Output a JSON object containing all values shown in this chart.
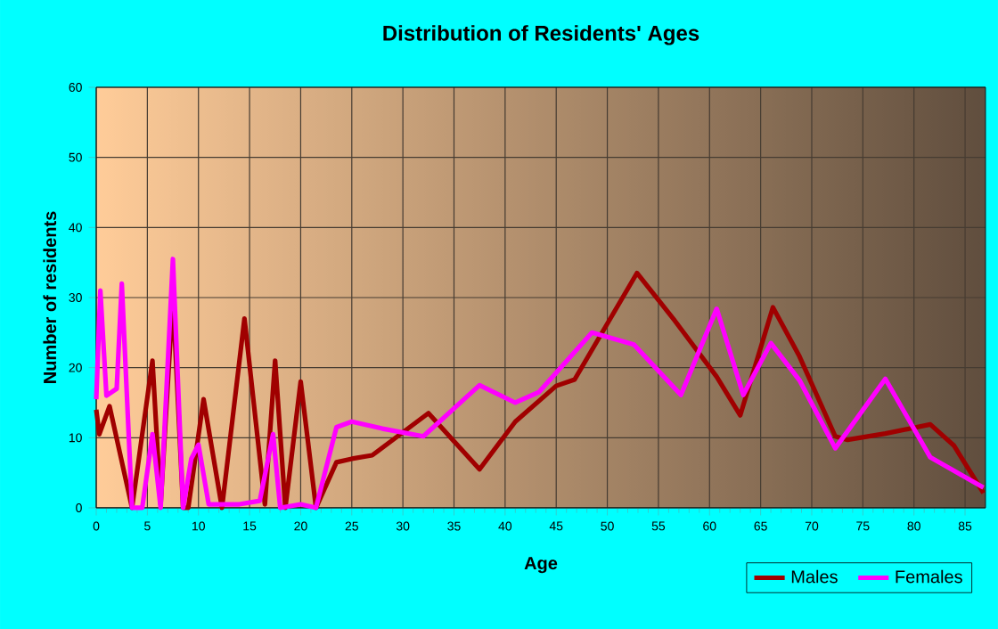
{
  "chart_data": {
    "type": "line",
    "title": "Distribution of Residents' Ages",
    "xlabel": "Age",
    "ylabel": "Number of residents",
    "series": [
      {
        "name": "Males",
        "color": "#a00000",
        "x": [
          0,
          0.3,
          1.3,
          3.5,
          5.5,
          6.3,
          7.5,
          8.5,
          9,
          10.5,
          12.3,
          14.5,
          16.5,
          17.5,
          18.5,
          20,
          21.5,
          23.5,
          25,
          27,
          32.5,
          37.5,
          41,
          45,
          46.8,
          52.9,
          56.6,
          60.7,
          63,
          66.2,
          68.8,
          72.3,
          73.5,
          77.2,
          81.6,
          83.9,
          86.8
        ],
        "values": [
          14,
          10.5,
          14.5,
          0,
          21,
          0.5,
          30,
          0,
          0,
          15.5,
          0,
          27,
          0.5,
          21,
          0,
          18,
          0,
          6.5,
          7,
          7.5,
          13.5,
          5.5,
          12.3,
          17.4,
          18.3,
          33.5,
          26.7,
          18.7,
          13.2,
          28.6,
          21.6,
          10.2,
          9.7,
          10.6,
          11.9,
          8.9,
          2.1
        ]
      },
      {
        "name": "Females",
        "color": "#ff00ff",
        "x": [
          0,
          0.4,
          1,
          2,
          2.5,
          3.5,
          4.5,
          5.5,
          6.3,
          7.5,
          8.5,
          9.3,
          10,
          11,
          14,
          16,
          17.3,
          18,
          20,
          21.5,
          23.5,
          25,
          28,
          32,
          37.5,
          41,
          43.3,
          48.5,
          52.6,
          57.2,
          60.7,
          63.3,
          66,
          68.8,
          72.3,
          77.2,
          81.6,
          86.8
        ],
        "values": [
          15.5,
          31,
          16,
          17,
          32,
          0,
          0,
          10.5,
          0,
          35.5,
          0,
          7,
          9,
          0.5,
          0.5,
          1,
          10.5,
          0,
          0.5,
          0,
          11.5,
          12.3,
          11.3,
          10.2,
          17.5,
          15,
          16.5,
          25,
          23.3,
          16.1,
          28.4,
          16.1,
          23.5,
          18.2,
          8.5,
          18.4,
          7.2,
          2.9
        ]
      }
    ],
    "xlim": [
      0,
      87
    ],
    "ylim": [
      0,
      60
    ],
    "xticks": [
      0,
      5,
      10,
      15,
      20,
      25,
      30,
      35,
      40,
      45,
      50,
      55,
      60,
      65,
      70,
      75,
      80,
      85
    ],
    "yticks": [
      0,
      10,
      20,
      30,
      40,
      50,
      60
    ],
    "grid": true,
    "legend": "bottom right",
    "marker": "none",
    "line_style": "solid"
  }
}
